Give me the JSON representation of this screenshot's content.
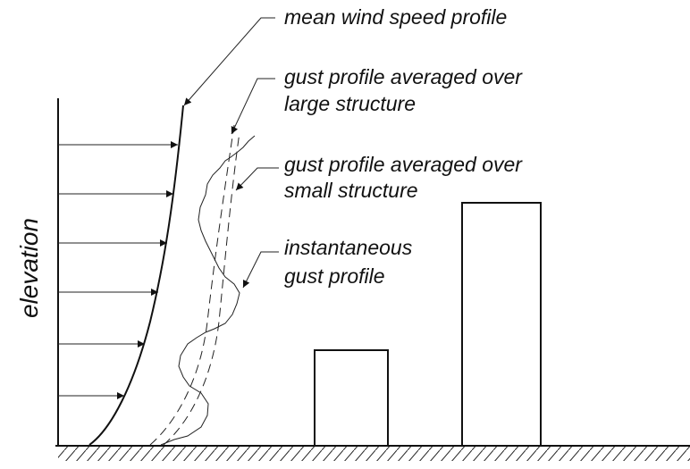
{
  "labels": {
    "mean": [
      "mean wind speed profile"
    ],
    "large": [
      "gust profile averaged over",
      "large structure"
    ],
    "small": [
      "gust profile averaged over",
      "small structure"
    ],
    "instant": [
      "instantaneous",
      "gust profile"
    ]
  },
  "axis_label": "elevation"
}
